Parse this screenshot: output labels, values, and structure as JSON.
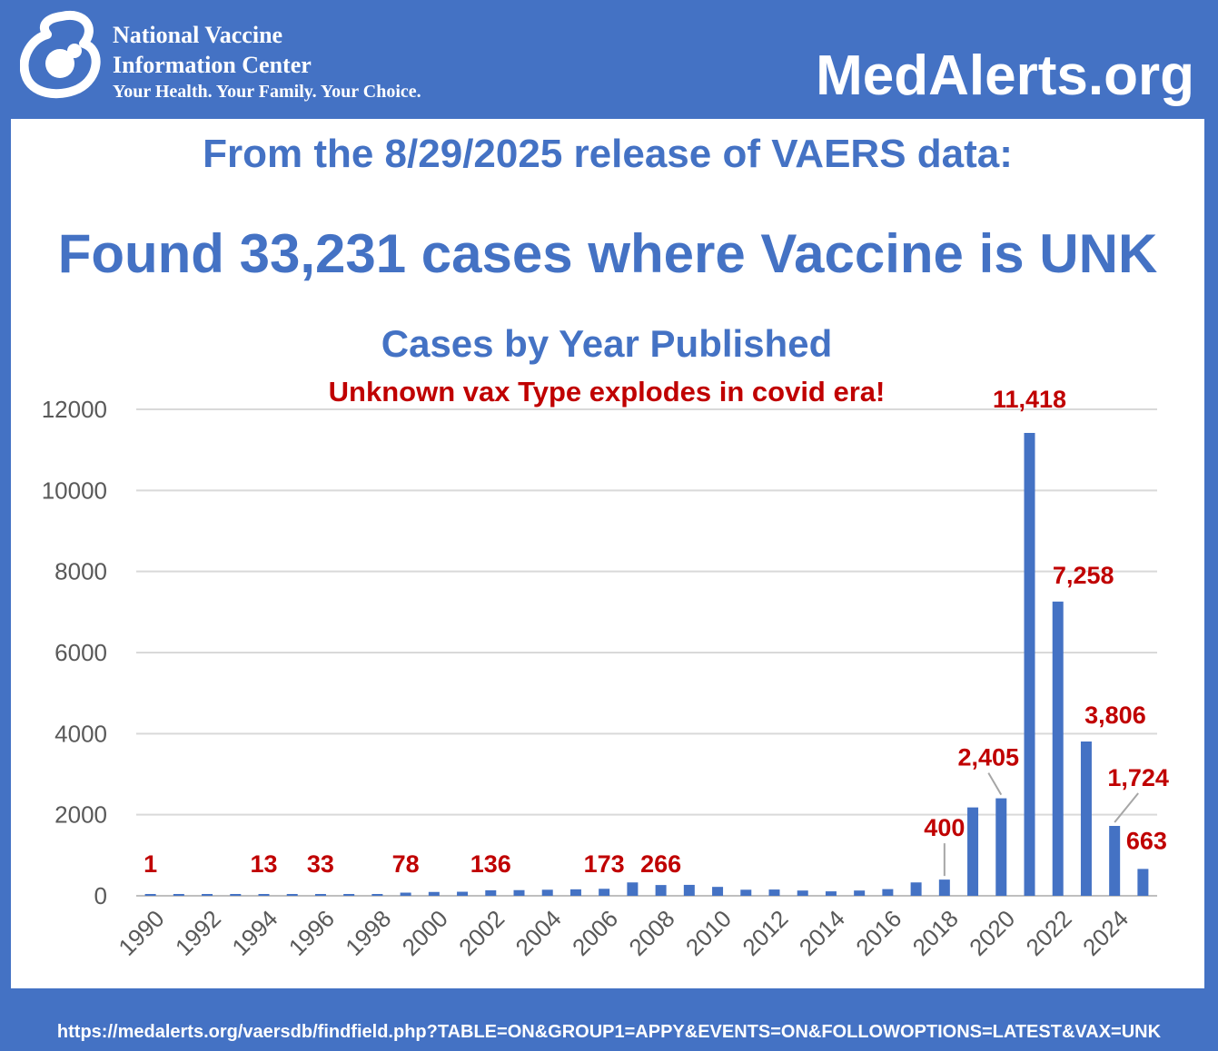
{
  "header": {
    "org_name_line1": "National Vaccine",
    "org_name_line2": "Information Center",
    "org_tagline": "Your Health. Your Family. Your Choice.",
    "site_name": "MedAlerts.org",
    "logo_icon": "nvic-mother-child-logo"
  },
  "headings": {
    "release": "From the 8/29/2025 release of VAERS data:",
    "found": "Found 33,231 cases where Vaccine is UNK"
  },
  "footer": {
    "url": "https://medalerts.org/vaersdb/findfield.php?TABLE=ON&GROUP1=APPY&EVENTS=ON&FOLLOWOPTIONS=LATEST&VAX=UNK"
  },
  "colors": {
    "background": "#4472c4",
    "bar": "#4472c4",
    "label": "#c00000",
    "axis_text": "#595959",
    "grid": "#d9d9d9"
  },
  "chart_data": {
    "type": "bar",
    "title": "Cases by Year Published",
    "subtitle": "Unknown vax Type explodes in covid era!",
    "xlabel": "",
    "ylabel": "",
    "ylim": [
      0,
      12000
    ],
    "yticks": [
      "0",
      "2000",
      "4000",
      "6000",
      "8000",
      "10000",
      "12000"
    ],
    "grid": true,
    "legend": "none",
    "categories": [
      "1990",
      "1991",
      "1992",
      "1993",
      "1994",
      "1995",
      "1996",
      "1997",
      "1998",
      "1999",
      "2000",
      "2001",
      "2002",
      "2003",
      "2004",
      "2005",
      "2006",
      "2007",
      "2008",
      "2009",
      "2010",
      "2011",
      "2012",
      "2013",
      "2014",
      "2015",
      "2016",
      "2017",
      "2018",
      "2019",
      "2020",
      "2021",
      "2022",
      "2023",
      "2024",
      "2025"
    ],
    "xtick_labels": [
      "1990",
      "",
      "1992",
      "",
      "1994",
      "",
      "1996",
      "",
      "1998",
      "",
      "2000",
      "",
      "2002",
      "",
      "2004",
      "",
      "2006",
      "",
      "2008",
      "",
      "2010",
      "",
      "2012",
      "",
      "2014",
      "",
      "2016",
      "",
      "2018",
      "",
      "2020",
      "",
      "2022",
      "",
      "2024",
      ""
    ],
    "values": [
      1,
      8,
      10,
      12,
      13,
      15,
      33,
      25,
      30,
      78,
      95,
      100,
      136,
      140,
      150,
      160,
      173,
      330,
      266,
      270,
      220,
      150,
      155,
      130,
      110,
      130,
      165,
      330,
      400,
      2180,
      2405,
      11418,
      7258,
      3806,
      1724,
      663
    ],
    "data_labels": [
      {
        "index": 0,
        "text": "1"
      },
      {
        "index": 4,
        "text": "13"
      },
      {
        "index": 6,
        "text": "33"
      },
      {
        "index": 9,
        "text": "78"
      },
      {
        "index": 12,
        "text": "136"
      },
      {
        "index": 16,
        "text": "173"
      },
      {
        "index": 18,
        "text": "266"
      },
      {
        "index": 28,
        "text": "400"
      },
      {
        "index": 30,
        "text": "2,405"
      },
      {
        "index": 31,
        "text": "11,418"
      },
      {
        "index": 32,
        "text": "7,258"
      },
      {
        "index": 33,
        "text": "3,806"
      },
      {
        "index": 34,
        "text": "1,724"
      },
      {
        "index": 35,
        "text": "663"
      }
    ]
  }
}
